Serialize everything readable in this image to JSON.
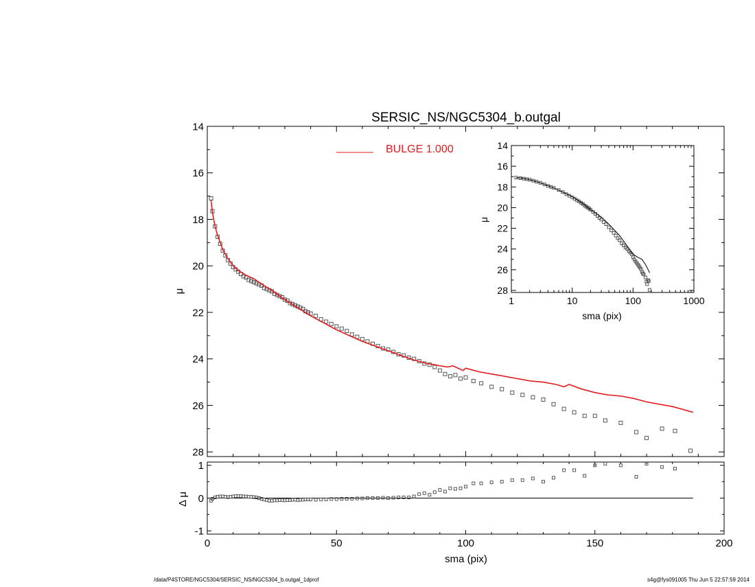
{
  "title": "SERSIC_NS/NGC5304_b.outgal",
  "footer": {
    "left": "/data/P4STORE/NGC5304/SERSIC_NS/NGC5304_b.outgal_1dprof",
    "right": "s4g@fys091005  Thu Jun  5 22:57:59 2014"
  },
  "colors": {
    "model": "#e41a1c",
    "data": "#555555",
    "axes": "#000000"
  },
  "chart_data": [
    {
      "id": "main",
      "type": "scatter",
      "title": "SERSIC_NS/NGC5304_b.outgal",
      "xlabel": "",
      "ylabel": "μ",
      "xlim": [
        0,
        200
      ],
      "ylim": [
        28.2,
        14
      ],
      "y_inverted": true,
      "xticks": [
        "0",
        "50",
        "100",
        "150",
        "200"
      ],
      "yticks": [
        "14",
        "16",
        "18",
        "20",
        "22",
        "24",
        "26",
        "28"
      ],
      "legend": {
        "label": "BULGE  1.000",
        "color": "#e41a1c",
        "placement": "top-center"
      },
      "series": [
        {
          "name": "BULGE  1.000",
          "style": "line",
          "color": "#e41a1c",
          "x": [
            1.4,
            2,
            3,
            4,
            5,
            6,
            8,
            10,
            12,
            15,
            18,
            20,
            22,
            25,
            28,
            30,
            35,
            40,
            45,
            50,
            55,
            60,
            65,
            70,
            75,
            80,
            85,
            88,
            90,
            93,
            95,
            98,
            99,
            100,
            105,
            110,
            115,
            120,
            125,
            130,
            135,
            138,
            140,
            145,
            150,
            155,
            160,
            165,
            170,
            175,
            180,
            185,
            188
          ],
          "y": [
            17.15,
            17.7,
            18.3,
            18.7,
            19.0,
            19.3,
            19.7,
            20.0,
            20.2,
            20.4,
            20.55,
            20.7,
            20.85,
            21.05,
            21.3,
            21.45,
            21.8,
            22.15,
            22.45,
            22.75,
            23.0,
            23.25,
            23.45,
            23.65,
            23.85,
            24.05,
            24.2,
            24.25,
            24.3,
            24.35,
            24.3,
            24.45,
            24.5,
            24.4,
            24.55,
            24.65,
            24.75,
            24.85,
            24.95,
            25.0,
            25.1,
            25.2,
            25.1,
            25.3,
            25.45,
            25.55,
            25.6,
            25.7,
            25.85,
            25.95,
            26.05,
            26.2,
            26.3
          ]
        },
        {
          "name": "",
          "style": "points",
          "color": "#555555",
          "x": [
            1.5,
            2,
            3,
            4,
            5,
            6,
            7,
            8,
            9,
            10,
            11,
            12,
            13,
            14,
            15,
            16,
            17,
            18,
            19,
            20,
            21,
            22,
            23,
            24,
            25,
            26,
            27,
            28,
            29,
            30,
            31,
            32,
            33,
            34,
            35,
            36,
            37,
            38,
            39,
            40,
            42,
            44,
            46,
            48,
            50,
            52,
            54,
            56,
            58,
            60,
            62,
            64,
            66,
            68,
            70,
            72,
            74,
            76,
            78,
            80,
            82,
            84,
            86,
            88,
            90,
            92,
            94,
            96,
            98,
            100,
            103,
            106,
            110,
            114,
            118,
            122,
            126,
            130,
            134,
            138,
            142,
            146,
            150,
            154,
            160,
            166,
            170,
            176,
            181,
            187
          ],
          "y": [
            17.1,
            17.65,
            18.3,
            18.75,
            19.05,
            19.35,
            19.55,
            19.75,
            19.9,
            20.05,
            20.15,
            20.25,
            20.35,
            20.45,
            20.5,
            20.6,
            20.65,
            20.7,
            20.75,
            20.8,
            20.85,
            20.95,
            21.0,
            21.05,
            21.1,
            21.2,
            21.25,
            21.3,
            21.35,
            21.45,
            21.5,
            21.6,
            21.65,
            21.7,
            21.75,
            21.8,
            21.85,
            21.95,
            22.0,
            22.05,
            22.15,
            22.3,
            22.4,
            22.5,
            22.6,
            22.7,
            22.8,
            22.95,
            23.05,
            23.15,
            23.25,
            23.35,
            23.45,
            23.55,
            23.6,
            23.7,
            23.8,
            23.85,
            23.95,
            24.0,
            24.1,
            24.2,
            24.25,
            24.35,
            24.5,
            24.65,
            24.75,
            24.7,
            24.85,
            24.8,
            24.95,
            25.05,
            25.2,
            25.3,
            25.45,
            25.55,
            25.65,
            25.75,
            25.95,
            26.15,
            26.3,
            26.45,
            26.45,
            26.65,
            26.75,
            27.15,
            27.4,
            27.0,
            27.1,
            27.95
          ]
        }
      ]
    },
    {
      "id": "residual",
      "type": "scatter",
      "xlabel": "sma (pix)",
      "ylabel": "Δ μ",
      "xlim": [
        0,
        200
      ],
      "ylim": [
        -1.1,
        1.1
      ],
      "xticks": [
        "0",
        "50",
        "100",
        "150",
        "200"
      ],
      "yticks": [
        "-1",
        "0",
        "1"
      ],
      "zero_line": {
        "x": [
          0,
          188
        ],
        "y": 0
      },
      "series": [
        {
          "name": "",
          "style": "points",
          "color": "#555555",
          "x": [
            1.5,
            2,
            3,
            4,
            5,
            6,
            7,
            8,
            9,
            10,
            11,
            12,
            13,
            14,
            15,
            16,
            17,
            18,
            19,
            20,
            21,
            22,
            23,
            24,
            25,
            26,
            27,
            28,
            29,
            30,
            31,
            32,
            33,
            34,
            35,
            36,
            37,
            38,
            39,
            40,
            42,
            44,
            46,
            48,
            50,
            52,
            54,
            56,
            58,
            60,
            62,
            64,
            66,
            68,
            70,
            72,
            74,
            76,
            78,
            80,
            82,
            84,
            86,
            88,
            90,
            92,
            94,
            96,
            98,
            100,
            103,
            106,
            110,
            114,
            118,
            122,
            126,
            130,
            134,
            138,
            142,
            146,
            150,
            154,
            160,
            166,
            170,
            176,
            181
          ],
          "y": [
            -0.08,
            -0.02,
            0.02,
            0.04,
            0.05,
            0.05,
            0.04,
            0.03,
            0.04,
            0.05,
            0.06,
            0.06,
            0.06,
            0.05,
            0.05,
            0.04,
            0.04,
            0.03,
            0.02,
            0.0,
            -0.02,
            -0.04,
            -0.06,
            -0.08,
            -0.08,
            -0.07,
            -0.07,
            -0.06,
            -0.06,
            -0.07,
            -0.06,
            -0.06,
            -0.05,
            -0.05,
            -0.06,
            -0.05,
            -0.05,
            -0.04,
            -0.04,
            -0.04,
            -0.05,
            -0.04,
            -0.04,
            -0.03,
            -0.03,
            -0.02,
            -0.02,
            -0.02,
            -0.01,
            -0.01,
            0.0,
            0.0,
            0.0,
            0.01,
            0.0,
            0.01,
            0.02,
            0.02,
            0.02,
            0.05,
            0.12,
            0.15,
            0.1,
            0.18,
            0.25,
            0.2,
            0.3,
            0.28,
            0.3,
            0.35,
            0.45,
            0.45,
            0.48,
            0.5,
            0.55,
            0.55,
            0.6,
            0.5,
            0.62,
            0.85,
            0.85,
            0.68,
            1.0,
            1.05,
            1.0,
            0.65,
            1.05,
            0.95,
            0.9
          ]
        }
      ]
    },
    {
      "id": "inset",
      "type": "scatter",
      "xlabel": "sma (pix)",
      "ylabel": "μ",
      "x_scale": "log",
      "xlim": [
        1,
        1000
      ],
      "ylim": [
        28.2,
        14
      ],
      "y_inverted": true,
      "xticks": [
        "1",
        "10",
        "100",
        "1000"
      ],
      "yticks": [
        "14",
        "16",
        "18",
        "20",
        "22",
        "24",
        "26",
        "28"
      ],
      "series": [
        {
          "name": "",
          "style": "line",
          "color": "#000000",
          "x": [
            1.2,
            1.5,
            2,
            3,
            5,
            7,
            10,
            15,
            20,
            30,
            40,
            60,
            80,
            100,
            120,
            140,
            160,
            188
          ],
          "y": [
            17.1,
            17.15,
            17.3,
            17.6,
            18.1,
            18.5,
            18.95,
            19.6,
            20.2,
            20.9,
            21.6,
            22.7,
            23.7,
            24.5,
            24.8,
            25.0,
            25.5,
            26.3
          ]
        },
        {
          "name": "",
          "style": "points",
          "color": "#555555",
          "x": [
            1.2,
            1.4,
            1.6,
            1.8,
            2,
            2.3,
            2.6,
            3,
            3.5,
            4,
            4.5,
            5,
            6,
            7,
            8,
            9,
            10,
            11,
            12,
            13,
            14,
            15,
            16,
            17,
            18,
            19,
            20,
            22,
            24,
            26,
            28,
            30,
            33,
            36,
            40,
            44,
            48,
            52,
            56,
            60,
            65,
            70,
            75,
            80,
            85,
            90,
            95,
            100,
            105,
            110,
            115,
            120,
            125,
            130,
            135,
            140,
            145,
            150,
            160,
            166,
            170,
            176,
            181,
            187
          ],
          "y": [
            17.1,
            17.15,
            17.2,
            17.25,
            17.3,
            17.4,
            17.5,
            17.6,
            17.75,
            17.9,
            18.0,
            18.1,
            18.3,
            18.5,
            18.7,
            18.85,
            19.0,
            19.15,
            19.3,
            19.4,
            19.55,
            19.65,
            19.8,
            19.9,
            20.0,
            20.1,
            20.2,
            20.4,
            20.6,
            20.8,
            21.0,
            21.15,
            21.4,
            21.6,
            21.9,
            22.2,
            22.45,
            22.7,
            22.95,
            23.15,
            23.45,
            23.65,
            23.85,
            24.0,
            24.2,
            24.35,
            24.5,
            24.8,
            25.0,
            25.2,
            25.35,
            25.5,
            25.65,
            25.8,
            25.95,
            26.2,
            26.35,
            26.45,
            26.75,
            27.15,
            27.4,
            27.0,
            27.1,
            27.95
          ]
        }
      ]
    }
  ]
}
